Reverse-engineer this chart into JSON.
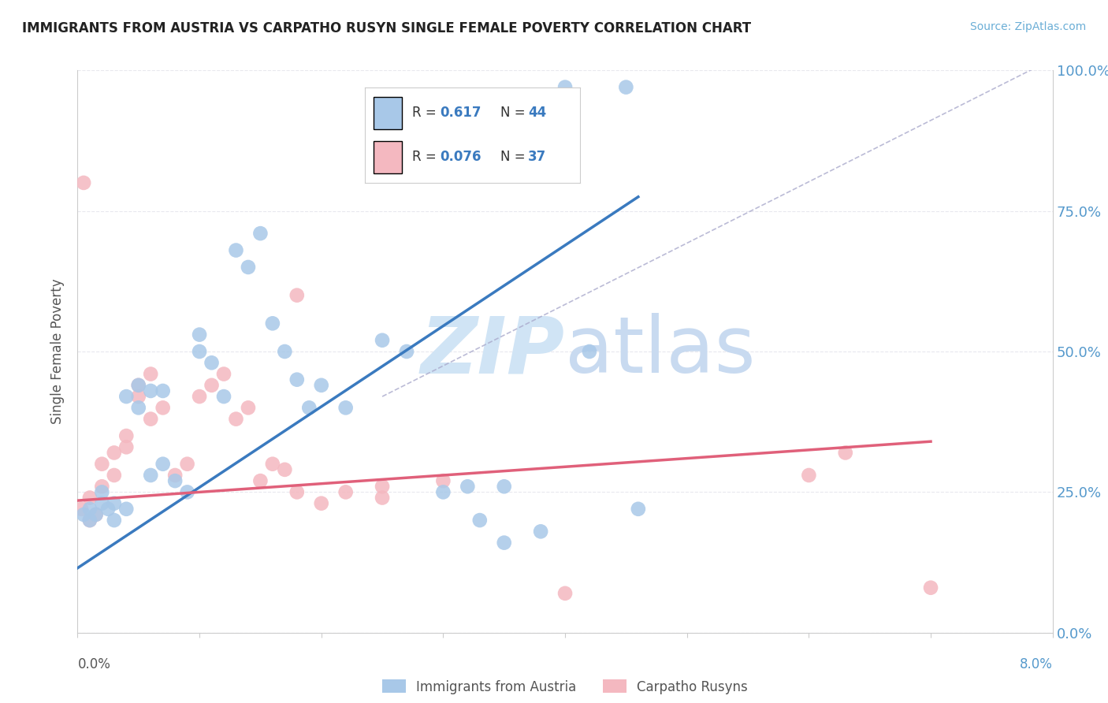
{
  "title": "IMMIGRANTS FROM AUSTRIA VS CARPATHO RUSYN SINGLE FEMALE POVERTY CORRELATION CHART",
  "source": "Source: ZipAtlas.com",
  "ylabel": "Single Female Poverty",
  "legend_blue_label": "Immigrants from Austria",
  "legend_pink_label": "Carpatho Rusyns",
  "blue_color": "#a8c8e8",
  "pink_color": "#f4b8c0",
  "blue_line_color": "#3a7abf",
  "pink_line_color": "#e0607a",
  "right_tick_color": "#5599cc",
  "ytick_labels": [
    "0.0%",
    "25.0%",
    "50.0%",
    "75.0%",
    "100.0%"
  ],
  "ytick_values": [
    0.0,
    0.25,
    0.5,
    0.75,
    1.0
  ],
  "xlim": [
    0.0,
    0.08
  ],
  "ylim": [
    0.0,
    1.0
  ],
  "blue_scatter_x": [
    0.0005,
    0.001,
    0.001,
    0.0015,
    0.002,
    0.002,
    0.0025,
    0.003,
    0.003,
    0.004,
    0.004,
    0.005,
    0.005,
    0.006,
    0.006,
    0.007,
    0.007,
    0.008,
    0.009,
    0.01,
    0.01,
    0.011,
    0.012,
    0.013,
    0.014,
    0.015,
    0.016,
    0.017,
    0.018,
    0.019,
    0.02,
    0.022,
    0.025,
    0.027,
    0.03,
    0.032,
    0.035,
    0.038,
    0.04,
    0.042,
    0.045,
    0.046,
    0.035,
    0.033
  ],
  "blue_scatter_y": [
    0.21,
    0.2,
    0.22,
    0.21,
    0.23,
    0.25,
    0.22,
    0.23,
    0.2,
    0.22,
    0.42,
    0.4,
    0.44,
    0.43,
    0.28,
    0.3,
    0.43,
    0.27,
    0.25,
    0.53,
    0.5,
    0.48,
    0.42,
    0.68,
    0.65,
    0.71,
    0.55,
    0.5,
    0.45,
    0.4,
    0.44,
    0.4,
    0.52,
    0.5,
    0.25,
    0.26,
    0.16,
    0.18,
    0.97,
    0.5,
    0.97,
    0.22,
    0.26,
    0.2
  ],
  "pink_scatter_x": [
    0.0003,
    0.0005,
    0.001,
    0.001,
    0.0015,
    0.002,
    0.002,
    0.003,
    0.003,
    0.004,
    0.004,
    0.005,
    0.005,
    0.006,
    0.006,
    0.007,
    0.008,
    0.009,
    0.01,
    0.011,
    0.012,
    0.013,
    0.014,
    0.015,
    0.016,
    0.017,
    0.018,
    0.02,
    0.022,
    0.025,
    0.03,
    0.04,
    0.018,
    0.025,
    0.06,
    0.063,
    0.07
  ],
  "pink_scatter_y": [
    0.22,
    0.8,
    0.24,
    0.2,
    0.21,
    0.26,
    0.3,
    0.28,
    0.32,
    0.35,
    0.33,
    0.42,
    0.44,
    0.46,
    0.38,
    0.4,
    0.28,
    0.3,
    0.42,
    0.44,
    0.46,
    0.38,
    0.4,
    0.27,
    0.3,
    0.29,
    0.25,
    0.23,
    0.25,
    0.24,
    0.27,
    0.07,
    0.6,
    0.26,
    0.28,
    0.32,
    0.08
  ],
  "blue_line_x": [
    0.0,
    0.046
  ],
  "blue_line_y": [
    0.115,
    0.775
  ],
  "pink_line_x": [
    0.0,
    0.07
  ],
  "pink_line_y": [
    0.235,
    0.34
  ],
  "diag_line_x": [
    0.025,
    0.08
  ],
  "diag_line_y": [
    0.42,
    1.02
  ],
  "watermark_zip": "ZIP",
  "watermark_atlas": "atlas",
  "watermark_color_zip": "#d0e4f5",
  "watermark_color_atlas": "#c8daf0",
  "grid_color": "#e8e8ee",
  "spine_color": "#cccccc"
}
